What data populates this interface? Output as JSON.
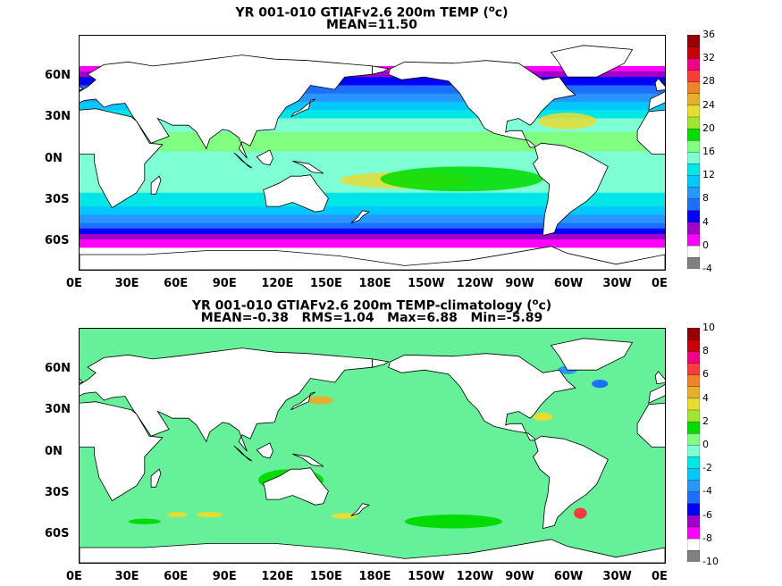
{
  "chart_data": [
    {
      "type": "heatmap",
      "title": "YR 001-010 GTIAFv2.6 200m TEMP (",
      "title_unit_sup": "o",
      "title_unit_end": "c)",
      "subtitle": "MEAN=11.50",
      "x_ticks": [
        "0E",
        "30E",
        "60E",
        "90E",
        "120E",
        "150E",
        "180E",
        "150W",
        "120W",
        "90W",
        "60W",
        "30W",
        "0E"
      ],
      "y_ticks": [
        "60N",
        "30N",
        "0N",
        "30S",
        "60S"
      ],
      "y_tick_lats": [
        60,
        30,
        0,
        -30,
        -60
      ],
      "xlim": [
        0,
        360
      ],
      "ylim": [
        -80,
        90
      ],
      "colorbar": {
        "levels": [
          -4,
          -2,
          0,
          2,
          4,
          6,
          8,
          10,
          12,
          14,
          16,
          18,
          20,
          22,
          24,
          26,
          28,
          30,
          32,
          34,
          36
        ],
        "labels": [
          "-4",
          "0",
          "4",
          "8",
          "12",
          "16",
          "20",
          "24",
          "28",
          "32",
          "36"
        ],
        "colors": [
          "#808080",
          "#ffffff",
          "#ff00ff",
          "#a000c8",
          "#0000ff",
          "#1e6eff",
          "#2896ff",
          "#00c8ff",
          "#00e6e6",
          "#7fffd4",
          "#80ff80",
          "#00dc00",
          "#a0e632",
          "#e6dc32",
          "#e6af2d",
          "#f08228",
          "#fa3c3c",
          "#f00082",
          "#c80000",
          "#960000"
        ]
      },
      "zonal_profile_lats": [
        90,
        70,
        60,
        45,
        30,
        15,
        0,
        -15,
        -30,
        -45,
        -55,
        -65,
        -80
      ],
      "zonal_profile_values": [
        -2,
        -1,
        4,
        9,
        14,
        17,
        15,
        15,
        13,
        8,
        3,
        -1,
        -2
      ]
    },
    {
      "type": "heatmap",
      "title": "YR 001-010 GTIAFv2.6 200m TEMP-climatology (",
      "title_unit_sup": "o",
      "title_unit_end": "c)",
      "subtitle": "MEAN=-0.38   RMS=1.04   Max=6.88   Min=-5.89",
      "x_ticks": [
        "0E",
        "30E",
        "60E",
        "90E",
        "120E",
        "150E",
        "180E",
        "150W",
        "120W",
        "90W",
        "60W",
        "30W",
        "0E"
      ],
      "y_ticks": [
        "60N",
        "30N",
        "0N",
        "30S",
        "60S"
      ],
      "y_tick_lats": [
        60,
        30,
        0,
        -30,
        -60
      ],
      "xlim": [
        0,
        360
      ],
      "ylim": [
        -80,
        90
      ],
      "colorbar": {
        "levels": [
          -10,
          -9,
          -8,
          -7,
          -6,
          -5,
          -4,
          -3,
          -2,
          -1,
          0,
          1,
          2,
          3,
          4,
          5,
          6,
          7,
          8,
          9,
          10
        ],
        "labels": [
          "-10",
          "-8",
          "-6",
          "-4",
          "-2",
          "0",
          "2",
          "4",
          "6",
          "8",
          "10"
        ],
        "colors": [
          "#808080",
          "#ffffff",
          "#ff00ff",
          "#a000c8",
          "#0000ff",
          "#1e6eff",
          "#2896ff",
          "#00c8ff",
          "#00e6e6",
          "#7fffd4",
          "#80ff80",
          "#00dc00",
          "#a0e632",
          "#e6dc32",
          "#e6af2d",
          "#f08228",
          "#fa3c3c",
          "#f00082",
          "#c80000",
          "#960000"
        ]
      },
      "mean": -0.38,
      "max": 6.88,
      "min": -5.89
    }
  ]
}
